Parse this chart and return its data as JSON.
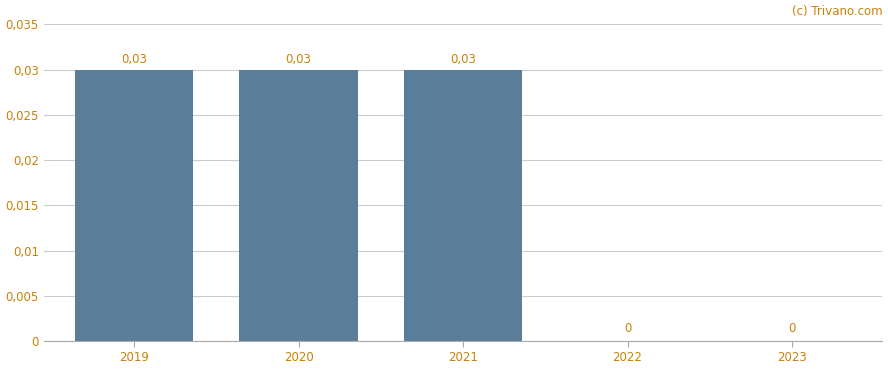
{
  "categories": [
    "2019",
    "2020",
    "2021",
    "2022",
    "2023"
  ],
  "values": [
    0.03,
    0.03,
    0.03,
    0,
    0
  ],
  "bar_color": "#5a7e9a",
  "bar_labels": [
    "0,03",
    "0,03",
    "0,03",
    "0",
    "0"
  ],
  "ylim": [
    0,
    0.035
  ],
  "yticks": [
    0,
    0.005,
    0.01,
    0.015,
    0.02,
    0.025,
    0.03,
    0.035
  ],
  "ytick_labels": [
    "0",
    "0,005",
    "0,01",
    "0,015",
    "0,02",
    "0,025",
    "0,03",
    "0,035"
  ],
  "background_color": "#ffffff",
  "grid_color": "#cccccc",
  "watermark": "(c) Trivano.com",
  "label_color": "#c8820a",
  "bar_label_fontsize": 8.5,
  "tick_fontsize": 8.5,
  "watermark_fontsize": 8.5,
  "bar_width": 0.72
}
